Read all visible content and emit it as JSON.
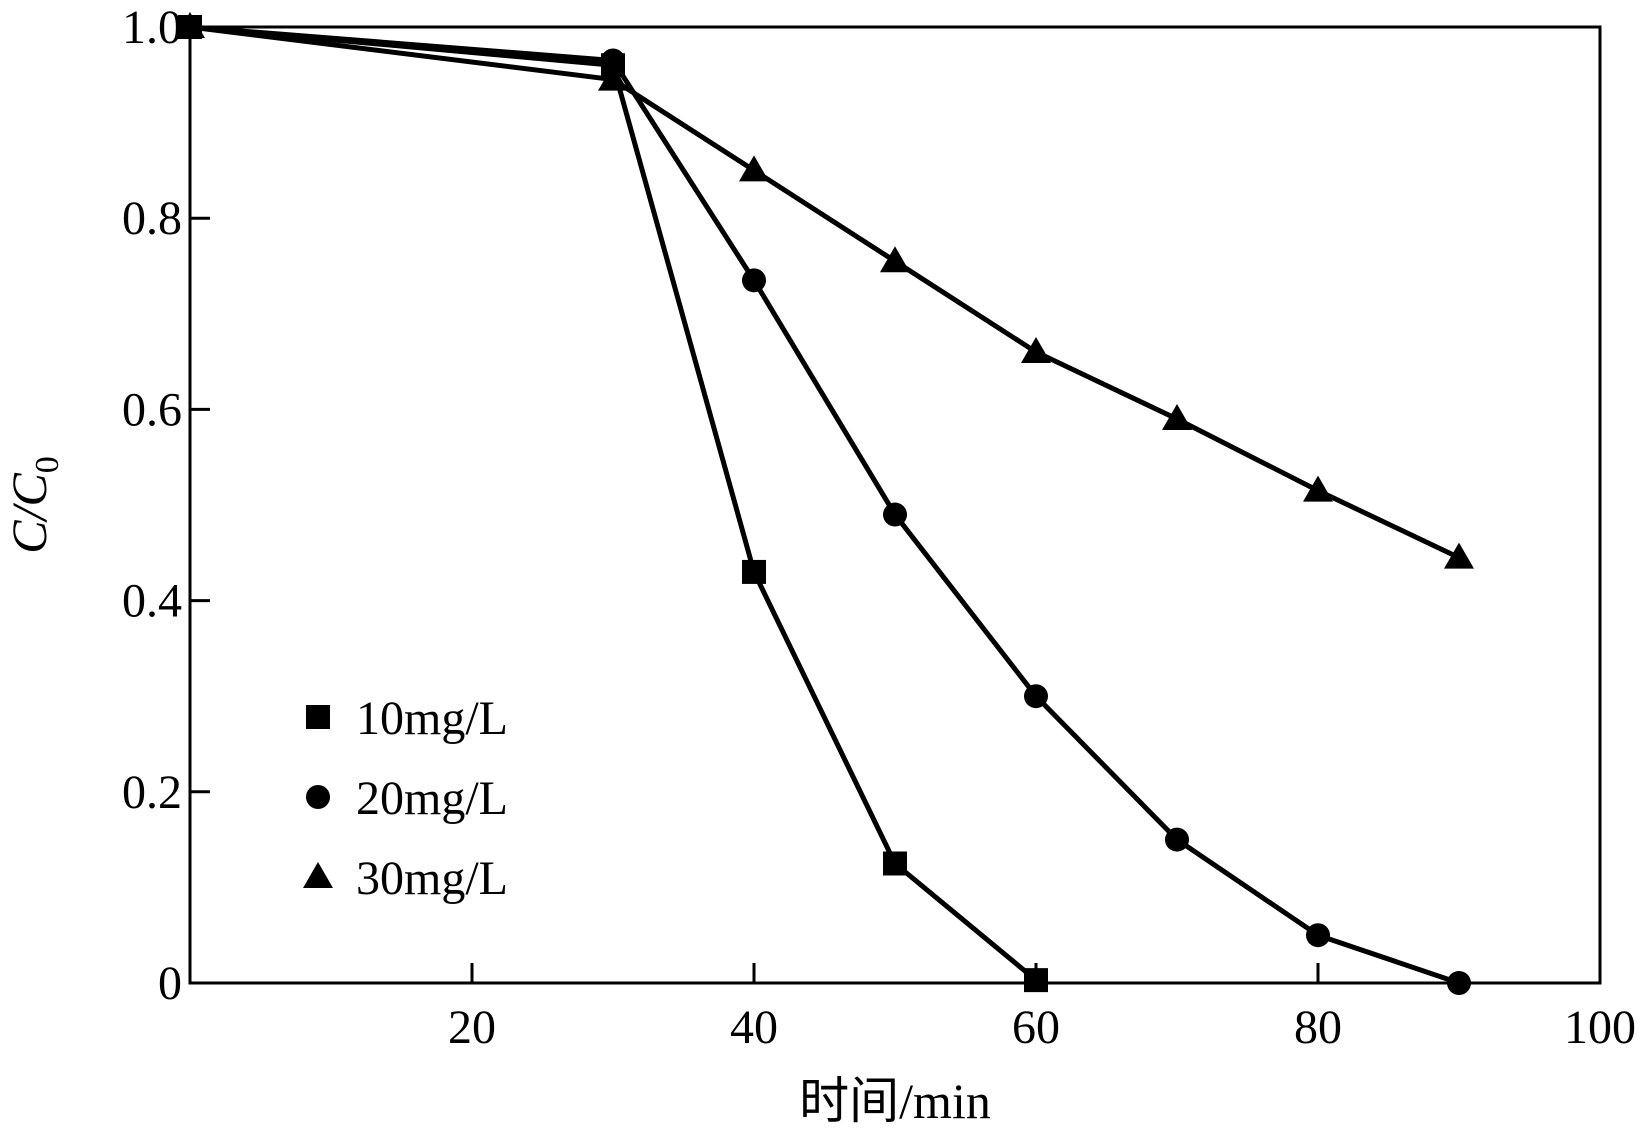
{
  "chart_data": {
    "type": "line",
    "title": "",
    "xlabel": "时间/min",
    "ylabel": "C/C0",
    "ylabel_parts": {
      "main": "C/C",
      "sub": "0"
    },
    "xlim": [
      0,
      100
    ],
    "ylim": [
      0,
      1.0
    ],
    "xticks": [
      20,
      40,
      60,
      80,
      100
    ],
    "xtick_labels": [
      "20",
      "40",
      "60",
      "80",
      "100"
    ],
    "yticks": [
      0,
      0.2,
      0.4,
      0.6,
      0.8,
      1.0
    ],
    "ytick_labels": [
      "0",
      "0.2",
      "0.4",
      "0.6",
      "0.8",
      "1.0"
    ],
    "grid": false,
    "legend_position": "lower-left",
    "color": "#000000",
    "series": [
      {
        "name": "10mg/L",
        "marker": "square",
        "x": [
          0,
          30,
          40,
          50,
          60
        ],
        "y": [
          1.0,
          0.96,
          0.43,
          0.125,
          0.003
        ]
      },
      {
        "name": "20mg/L",
        "marker": "circle",
        "x": [
          0,
          30,
          40,
          50,
          60,
          70,
          80,
          90
        ],
        "y": [
          1.0,
          0.965,
          0.735,
          0.49,
          0.3,
          0.15,
          0.05,
          0.0
        ]
      },
      {
        "name": "30mg/L",
        "marker": "triangle",
        "x": [
          0,
          30,
          40,
          50,
          60,
          70,
          80,
          90
        ],
        "y": [
          1.0,
          0.945,
          0.85,
          0.755,
          0.66,
          0.59,
          0.515,
          0.445
        ]
      }
    ]
  }
}
